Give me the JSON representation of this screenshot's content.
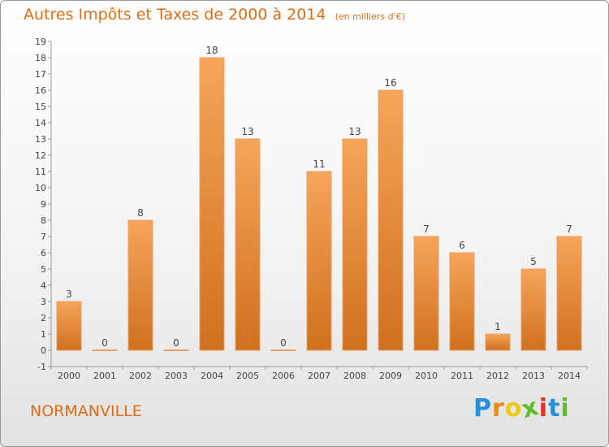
{
  "title": "Autres Impôts et Taxes de 2000 à 2014",
  "unit_note": "(en milliers d'€)",
  "commune": "NORMANVILLE",
  "logo": {
    "letters": [
      "P",
      "r",
      "o",
      "x",
      "i",
      "t",
      "i"
    ],
    "colors": [
      "#2a8fd6",
      "#f08a14",
      "#f0c814",
      "#5fbf2a",
      "#e0302a",
      "#2a8fd6",
      "#5fbf2a"
    ]
  },
  "colors": {
    "accent": "#e06d14",
    "bar_top": "#f6a55a",
    "bar_bottom": "#d0701e"
  },
  "chart_data": {
    "type": "bar",
    "categories": [
      "2000",
      "2001",
      "2002",
      "2003",
      "2004",
      "2005",
      "2006",
      "2007",
      "2008",
      "2009",
      "2010",
      "2011",
      "2012",
      "2013",
      "2014"
    ],
    "values": [
      3,
      0,
      8,
      0,
      18,
      13,
      0,
      11,
      13,
      16,
      7,
      6,
      1,
      5,
      7
    ],
    "value_labels": [
      "3",
      "0",
      "8",
      "0",
      "18",
      "13",
      "0",
      "11",
      "13",
      "16",
      "7",
      "6",
      "1",
      "5",
      "7"
    ],
    "y_ticks": [
      "-1",
      "0",
      "1",
      "2",
      "3",
      "4",
      "5",
      "6",
      "7",
      "8",
      "9",
      "10",
      "11",
      "12",
      "13",
      "14",
      "15",
      "16",
      "17",
      "18",
      "19"
    ],
    "ylim": [
      -1,
      19
    ],
    "grid": false,
    "legend": "none"
  }
}
